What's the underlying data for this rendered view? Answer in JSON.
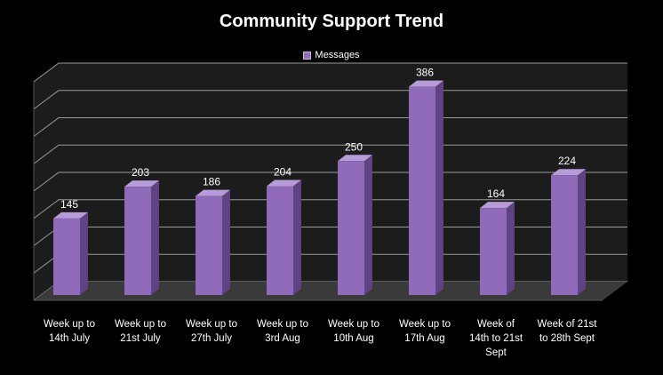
{
  "chart_data": {
    "type": "bar",
    "title": "Community Support Trend",
    "legend": "top",
    "grid": true,
    "ylim": [
      0,
      400
    ],
    "categories": [
      [
        "Week up to",
        "14th July"
      ],
      [
        "Week up to",
        "21st July"
      ],
      [
        "Week up to",
        "27th July"
      ],
      [
        "Week up to",
        "3rd Aug"
      ],
      [
        "Week up to",
        "10th Aug"
      ],
      [
        "Week up to",
        "17th Aug"
      ],
      [
        "Week of",
        "14th to 21st",
        "Sept"
      ],
      [
        "Week of 21st",
        "to 28th Sept"
      ]
    ],
    "series": [
      {
        "name": "Messages",
        "values": [
          145,
          203,
          186,
          204,
          250,
          386,
          164,
          224
        ]
      }
    ]
  },
  "colors": {
    "bar_front": "#8e6ab8",
    "bar_side": "#5e4380",
    "bar_top": "#b79ad8",
    "grid": "#9a9a9a",
    "wall": "#1c1c1c",
    "floor": "#3a3a3a"
  }
}
